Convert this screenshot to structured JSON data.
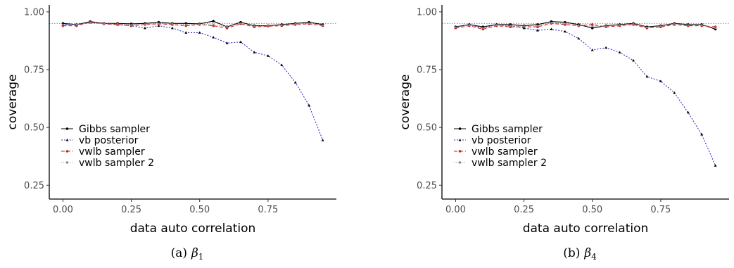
{
  "chart_data": [
    {
      "type": "line",
      "caption_prefix": "(a)",
      "caption_symbol": "β",
      "caption_sub": "1",
      "xlabel": "data auto correlation",
      "ylabel": "coverage",
      "xlim": [
        -0.05,
        1.0
      ],
      "ylim": [
        0.19,
        1.03
      ],
      "xticks": [
        "0.00",
        "0.25",
        "0.50",
        "0.75"
      ],
      "yticks": [
        "0.25",
        "0.50",
        "0.75",
        "1.00"
      ],
      "reference_line": 0.95,
      "legend_position": "bottom-left",
      "x": [
        0,
        0.05,
        0.1,
        0.15,
        0.2,
        0.25,
        0.3,
        0.35,
        0.4,
        0.45,
        0.5,
        0.55,
        0.6,
        0.65,
        0.7,
        0.75,
        0.8,
        0.85,
        0.9,
        0.95
      ],
      "series": [
        {
          "name": "Gibbs sampler",
          "color": "#000000",
          "values": [
            0.95,
            0.945,
            0.958,
            0.95,
            0.95,
            0.948,
            0.95,
            0.955,
            0.95,
            0.95,
            0.948,
            0.96,
            0.935,
            0.955,
            0.94,
            0.94,
            0.945,
            0.95,
            0.955,
            0.945
          ]
        },
        {
          "name": "vb posterior",
          "color": "#3333cc",
          "values": [
            0.945,
            0.945,
            0.955,
            0.95,
            0.945,
            0.94,
            0.93,
            0.94,
            0.93,
            0.91,
            0.91,
            0.89,
            0.865,
            0.87,
            0.825,
            0.81,
            0.77,
            0.695,
            0.595,
            0.445
          ]
        },
        {
          "name": "vwlb sampler",
          "color": "#cc2222",
          "values": [
            0.94,
            0.94,
            0.955,
            0.948,
            0.945,
            0.94,
            0.945,
            0.948,
            0.945,
            0.94,
            0.945,
            0.94,
            0.93,
            0.948,
            0.935,
            0.938,
            0.94,
            0.945,
            0.948,
            0.94
          ]
        },
        {
          "name": "vwlb sampler 2",
          "color": "#8c8c8c",
          "values": [
            0.945,
            0.945,
            0.952,
            0.948,
            0.948,
            0.944,
            0.946,
            0.95,
            0.948,
            0.945,
            0.946,
            0.945,
            0.935,
            0.95,
            0.938,
            0.94,
            0.943,
            0.948,
            0.95,
            0.942
          ]
        }
      ]
    },
    {
      "type": "line",
      "caption_prefix": "(b)",
      "caption_symbol": "β",
      "caption_sub": "4",
      "xlabel": "data auto correlation",
      "ylabel": "coverage",
      "xlim": [
        -0.05,
        1.0
      ],
      "ylim": [
        0.19,
        1.03
      ],
      "xticks": [
        "0.00",
        "0.25",
        "0.50",
        "0.75"
      ],
      "yticks": [
        "0.25",
        "0.50",
        "0.75",
        "1.00"
      ],
      "reference_line": 0.95,
      "legend_position": "bottom-left",
      "x": [
        0,
        0.05,
        0.1,
        0.15,
        0.2,
        0.25,
        0.3,
        0.35,
        0.4,
        0.45,
        0.5,
        0.55,
        0.6,
        0.65,
        0.7,
        0.75,
        0.8,
        0.85,
        0.9,
        0.95
      ],
      "series": [
        {
          "name": "Gibbs sampler",
          "color": "#000000",
          "values": [
            0.935,
            0.945,
            0.935,
            0.945,
            0.945,
            0.94,
            0.945,
            0.958,
            0.955,
            0.945,
            0.93,
            0.94,
            0.945,
            0.95,
            0.935,
            0.94,
            0.95,
            0.945,
            0.945,
            0.925
          ]
        },
        {
          "name": "vb posterior",
          "color": "#3333cc",
          "values": [
            0.935,
            0.945,
            0.93,
            0.945,
            0.94,
            0.93,
            0.92,
            0.925,
            0.915,
            0.885,
            0.835,
            0.845,
            0.825,
            0.79,
            0.72,
            0.7,
            0.65,
            0.565,
            0.47,
            0.335
          ]
        },
        {
          "name": "vwlb sampler",
          "color": "#cc2222",
          "values": [
            0.93,
            0.94,
            0.925,
            0.94,
            0.935,
            0.935,
            0.935,
            0.95,
            0.945,
            0.94,
            0.945,
            0.935,
            0.94,
            0.945,
            0.93,
            0.935,
            0.945,
            0.94,
            0.94,
            0.935
          ]
        },
        {
          "name": "vwlb sampler 2",
          "color": "#8c8c8c",
          "values": [
            0.933,
            0.943,
            0.93,
            0.943,
            0.94,
            0.938,
            0.94,
            0.953,
            0.95,
            0.942,
            0.938,
            0.938,
            0.943,
            0.948,
            0.933,
            0.938,
            0.948,
            0.943,
            0.943,
            0.93
          ]
        }
      ]
    }
  ]
}
